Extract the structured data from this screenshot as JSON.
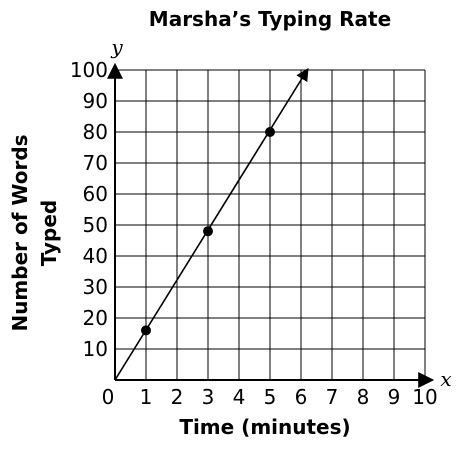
{
  "chart_data": {
    "type": "line",
    "title": "Marsha’s Typing Rate",
    "xlabel": "Time (minutes)",
    "ylabel_lines": [
      "Number of Words",
      "Typed"
    ],
    "x_var": "x",
    "y_var": "y",
    "xlim": [
      0,
      10
    ],
    "ylim": [
      0,
      100
    ],
    "x_ticks": [
      0,
      1,
      2,
      3,
      4,
      5,
      6,
      7,
      8,
      9,
      10
    ],
    "y_ticks": [
      10,
      20,
      30,
      40,
      50,
      60,
      70,
      80,
      90,
      100
    ],
    "x_tick_labels": [
      "0",
      "1",
      "2",
      "3",
      "4",
      "5",
      "6",
      "7",
      "8",
      "9",
      "10"
    ],
    "y_tick_labels": [
      "10",
      "20",
      "30",
      "40",
      "50",
      "60",
      "70",
      "80",
      "90",
      "100"
    ],
    "grid": true,
    "series": [
      {
        "line_x": [
          0,
          6.2
        ],
        "line_y": [
          0,
          100
        ],
        "arrow_end": true,
        "points_x": [
          1,
          3,
          5
        ],
        "points_y": [
          16,
          48,
          80
        ]
      }
    ],
    "colors": {
      "line": "#000000",
      "grid": "#000000",
      "point": "#000000"
    }
  }
}
